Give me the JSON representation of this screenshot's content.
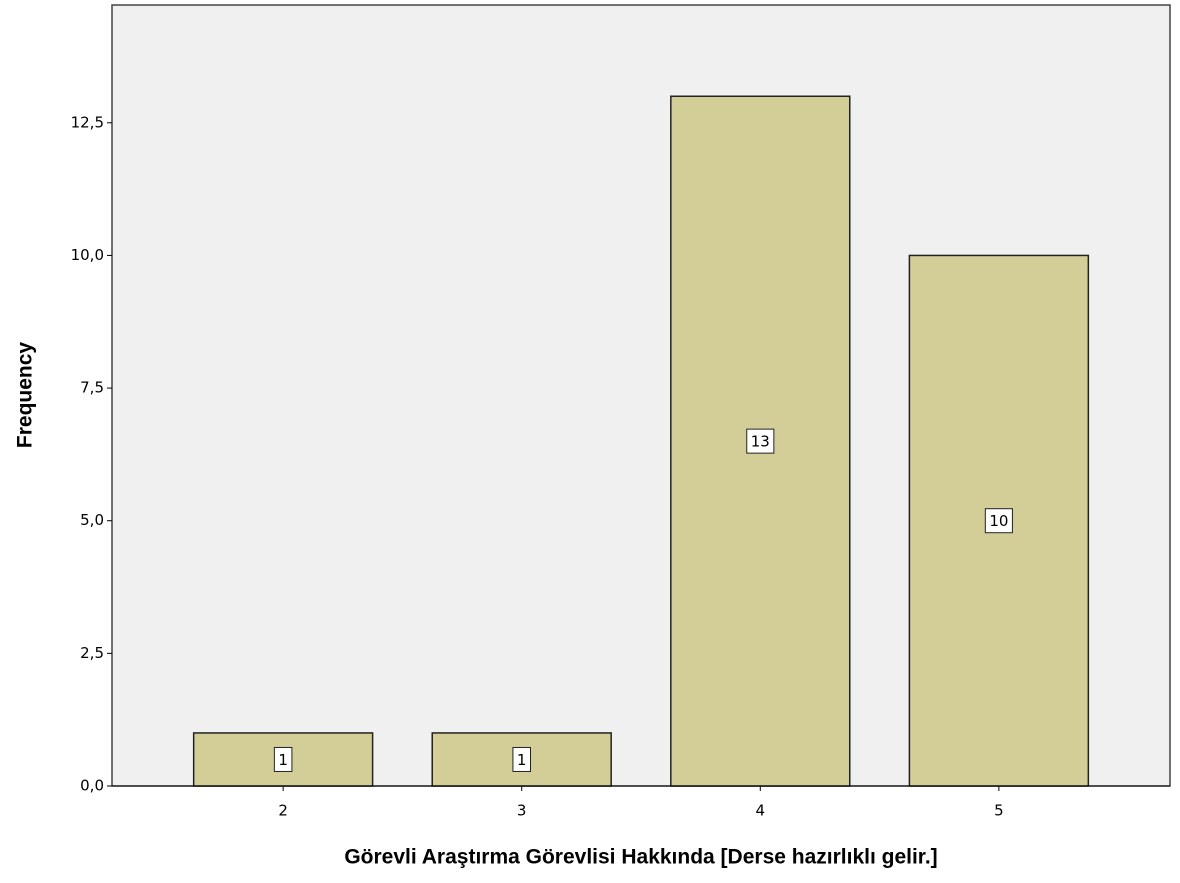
{
  "chart_data": {
    "type": "bar",
    "x_label": "Görevli Araştırma Görevlisi Hakkında [Derse hazırlıklı gelir.]",
    "y_label": "Frequency",
    "categories": [
      "2",
      "3",
      "4",
      "5"
    ],
    "values": [
      1,
      1,
      13,
      10
    ],
    "color": "#d3ce97",
    "ylim": [
      0,
      14.72
    ],
    "yticks": [
      {
        "value": 0,
        "label": "0,0"
      },
      {
        "value": 2.5,
        "label": "2,5"
      },
      {
        "value": 5,
        "label": "5,0"
      },
      {
        "value": 7.5,
        "label": "7,5"
      },
      {
        "value": 10,
        "label": "10,0"
      },
      {
        "value": 12.5,
        "label": "12,5"
      }
    ],
    "grid": false
  }
}
